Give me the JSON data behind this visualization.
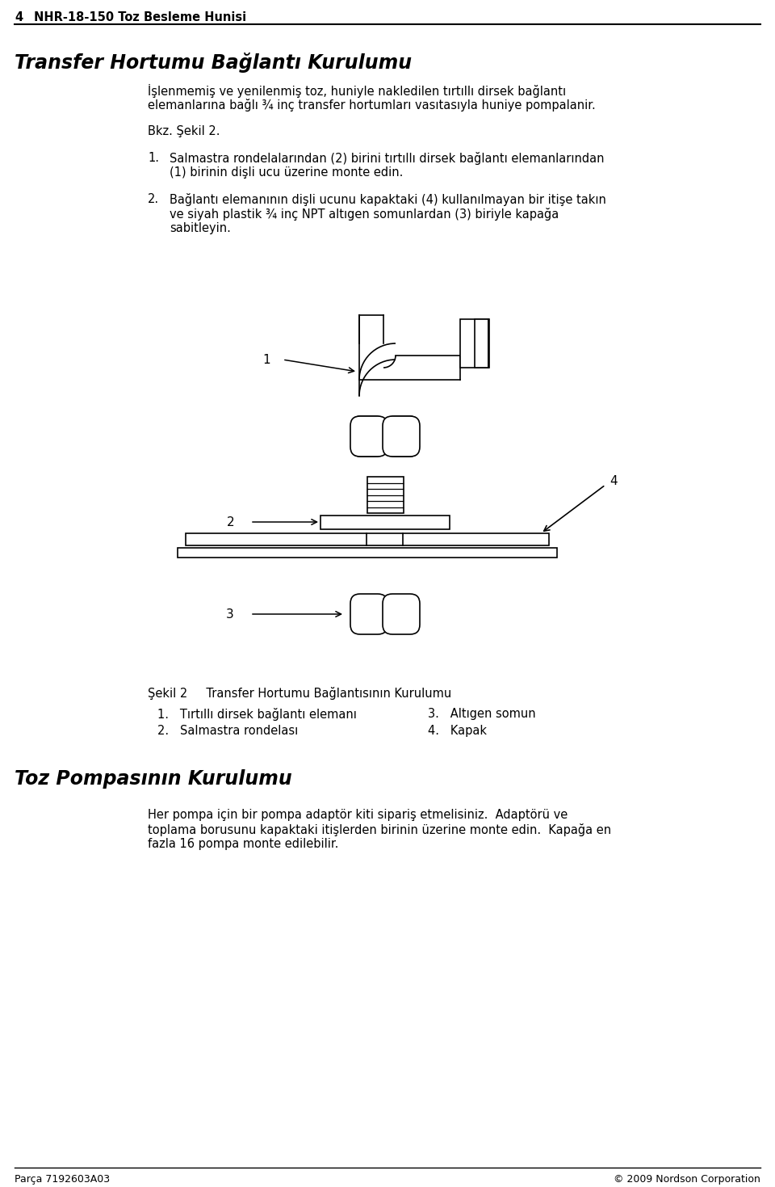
{
  "page_number": "4",
  "header_title": "NHR-18-150 Toz Besleme Hunisi",
  "section_title": "Transfer Hortumu Bağlantı Kurulumu",
  "intro_line1": "İşlenmemiş ve yenilenmiş toz, huniyle nakledilen tırtıllı dirsek bağlantı",
  "intro_line2": "elemanlarına bağlı ¾ inç transfer hortumları vasıtasıyla huniye pompalanir.",
  "bkz_text": "Bkz. Şekil 2.",
  "step1_num": "1.",
  "step1_line1": "Salmastra rondelalarından (2) birini tırtıllı dirsek bağlantı elemanlarından",
  "step1_line2": "(1) birinin dişli ucu üzerine monte edin.",
  "step2_num": "2.",
  "step2_line1": "Bağlantı elemanının dişli ucunu kapaktaki (4) kullanılmayan bir itişe takın",
  "step2_line2": "ve siyah plastik ¾ inç NPT altıgen somunlardan (3) biriyle kapağa",
  "step2_line3": "sabitleyin.",
  "figure_caption": "Şekil 2     Transfer Hortumu Bağlantısının Kurulumu",
  "legend1": "1.   Tırtıllı dirsek bağlantı elemanı",
  "legend2": "2.   Salmastra rondelası",
  "legend3": "3.   Altıgen somun",
  "legend4": "4.   Kapak",
  "section2_title": "Toz Pompasının Kurulumu",
  "section2_line1": "Her pompa için bir pompa adaptör kiti sipariş etmelisiniz.  Adaptörü ve",
  "section2_line2": "toplama borusunu kapaktaki itişlerden birinin üzerine monte edin.  Kapağa en",
  "section2_line3": "fazla 16 pompa monte edilebilir.",
  "footer_left": "Parça 7192603A03",
  "footer_right": "© 2009 Nordson Corporation",
  "bg_color": "#ffffff",
  "text_color": "#000000"
}
